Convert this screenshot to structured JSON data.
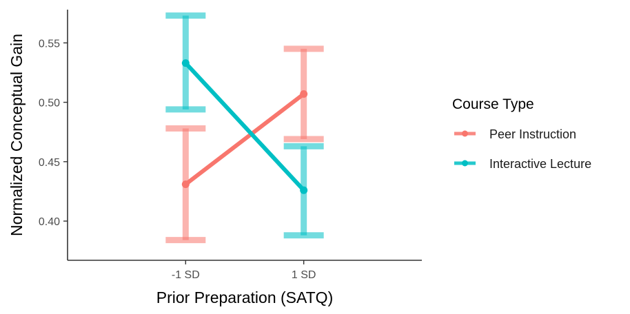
{
  "chart_data": {
    "type": "line",
    "xlabel": "Prior Preparation (SATQ)",
    "ylabel": "Normalized Conceptual Gain",
    "categories": [
      "-1 SD",
      "1 SD"
    ],
    "ylim": [
      0.367,
      0.578
    ],
    "yticks": [
      0.4,
      0.45,
      0.5,
      0.55
    ],
    "ytick_labels": [
      "0.40",
      "0.45",
      "0.50",
      "0.55"
    ],
    "grid": false,
    "legend": {
      "title": "Course Type",
      "placement": "right"
    },
    "series": [
      {
        "name": "Peer Instruction",
        "color": "#F8766D",
        "values": [
          0.431,
          0.507
        ],
        "lower": [
          0.384,
          0.469
        ],
        "upper": [
          0.478,
          0.545
        ]
      },
      {
        "name": "Interactive Lecture",
        "color": "#00BFC4",
        "values": [
          0.533,
          0.426
        ],
        "lower": [
          0.494,
          0.388
        ],
        "upper": [
          0.573,
          0.463
        ]
      }
    ]
  }
}
